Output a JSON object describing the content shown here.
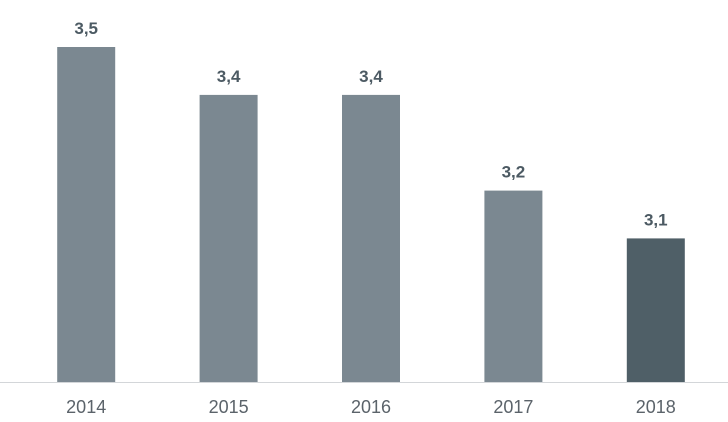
{
  "chart_data": {
    "type": "bar",
    "categories": [
      "2014",
      "2015",
      "2016",
      "2017",
      "2018"
    ],
    "values": [
      3.5,
      3.4,
      3.4,
      3.2,
      3.1
    ],
    "value_labels": [
      "3,5",
      "3,4",
      "3,4",
      "3,2",
      "3,1"
    ],
    "title": "",
    "xlabel": "",
    "ylabel": "",
    "ylim": [
      2.8,
      3.5
    ],
    "grid": false,
    "legend": "none",
    "colors": {
      "bar": "#7b8891",
      "highlight_bar": "#4f5f67",
      "value_label": "#4c5a63",
      "tick_label": "#5b636a",
      "axis": "#d3d6d9"
    },
    "highlight_index": 4
  }
}
